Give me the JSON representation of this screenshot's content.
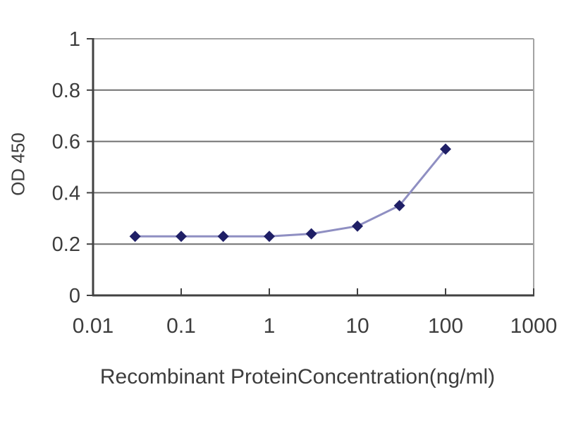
{
  "chart_data": {
    "type": "line",
    "title": "",
    "xlabel": "Recombinant ProteinConcentration(ng/ml)",
    "ylabel": "OD 450",
    "xscale": "log",
    "xlim": [
      0.01,
      1000
    ],
    "ylim": [
      0,
      1
    ],
    "xticks": [
      0.01,
      0.1,
      1,
      10,
      100,
      1000
    ],
    "xtick_labels": [
      "0.01",
      "0.1",
      "1",
      "10",
      "100",
      "1000"
    ],
    "yticks": [
      0,
      0.2,
      0.4,
      0.6,
      0.8,
      1
    ],
    "ytick_labels": [
      "0",
      "0.2",
      "0.4",
      "0.6",
      "0.8",
      "1"
    ],
    "grid": true,
    "legend": false,
    "series": [
      {
        "name": "OD450",
        "x": [
          0.03,
          0.1,
          0.3,
          1,
          3,
          10,
          30,
          100
        ],
        "y": [
          0.23,
          0.23,
          0.23,
          0.23,
          0.24,
          0.27,
          0.35,
          0.57
        ],
        "marker": "diamond"
      }
    ],
    "colors": {
      "line": "#8f8fc2",
      "marker": "#1f1f66",
      "grid": "#707070",
      "axis_dark": "#424242",
      "axis_light": "#a3a3a3",
      "text": "#3d3d3d",
      "background": "#ffffff"
    }
  }
}
